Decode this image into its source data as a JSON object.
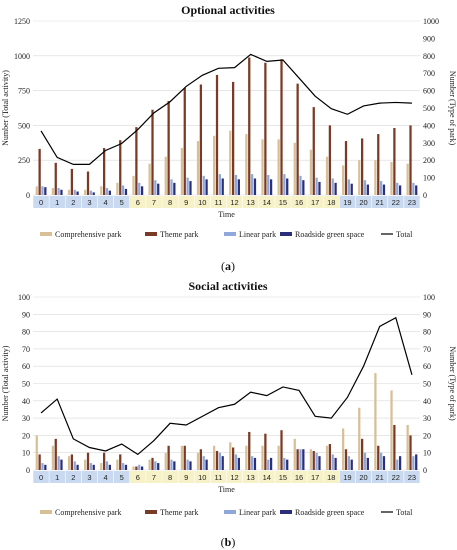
{
  "colors": {
    "comprehensive": "#d8bf96",
    "theme": "#7a3a25",
    "linear": "#8fa8dc",
    "roadside": "#2b2f7a",
    "total": "#000000",
    "hour_blue": "#c9daf0",
    "hour_yellow": "#f6f1c6"
  },
  "chart_data": [
    {
      "type": "bar",
      "panel_label": "(a)",
      "caption_letter": "a",
      "title": "Optional activities",
      "xlabel": "Time",
      "ylabel": "Number (Total activity)",
      "y2label": "Number (Type of park)",
      "ylim": [
        0,
        1250
      ],
      "y2lim": [
        0,
        1000
      ],
      "yticks": [
        "0",
        "250",
        "500",
        "750",
        "1000",
        "1250"
      ],
      "y2ticks": [
        "0",
        "100",
        "200",
        "300",
        "400",
        "500",
        "600",
        "700",
        "800",
        "900",
        "1000"
      ],
      "categories": [
        "0",
        "1",
        "2",
        "3",
        "4",
        "5",
        "6",
        "7",
        "8",
        "9",
        "10",
        "11",
        "12",
        "13",
        "14",
        "15",
        "16",
        "17",
        "18",
        "19",
        "20",
        "21",
        "22",
        "23"
      ],
      "hour_shading": [
        "blue",
        "blue",
        "blue",
        "blue",
        "blue",
        "blue",
        "yellow",
        "yellow",
        "yellow",
        "yellow",
        "yellow",
        "yellow",
        "yellow",
        "yellow",
        "yellow",
        "yellow",
        "yellow",
        "yellow",
        "yellow",
        "blue",
        "blue",
        "blue",
        "blue",
        "blue"
      ],
      "legend_position": "bottom",
      "grid": true,
      "series": [
        {
          "name": "Comprehensive park",
          "key": "comprehensive",
          "axis": "secondary",
          "values": [
            50,
            40,
            30,
            30,
            50,
            70,
            110,
            180,
            220,
            270,
            310,
            340,
            370,
            350,
            320,
            320,
            300,
            260,
            220,
            170,
            200,
            200,
            190,
            180
          ]
        },
        {
          "name": "Theme park",
          "key": "theme",
          "axis": "secondary",
          "values": [
            265,
            185,
            150,
            135,
            270,
            315,
            390,
            490,
            540,
            615,
            635,
            690,
            650,
            790,
            760,
            780,
            640,
            505,
            400,
            310,
            325,
            350,
            385,
            400
          ]
        },
        {
          "name": "Linear park",
          "key": "linear",
          "axis": "secondary",
          "values": [
            50,
            40,
            30,
            25,
            40,
            55,
            70,
            85,
            90,
            100,
            110,
            120,
            115,
            120,
            115,
            120,
            110,
            100,
            95,
            90,
            85,
            80,
            70,
            70
          ]
        },
        {
          "name": "Roadside green space",
          "key": "roadside",
          "axis": "secondary",
          "values": [
            45,
            30,
            20,
            15,
            25,
            35,
            50,
            65,
            70,
            80,
            90,
            95,
            90,
            95,
            90,
            95,
            85,
            75,
            70,
            65,
            60,
            60,
            55,
            55
          ]
        },
        {
          "name": "Total",
          "key": "total",
          "axis": "primary",
          "type": "line",
          "values": [
            460,
            270,
            220,
            220,
            320,
            370,
            470,
            590,
            670,
            780,
            860,
            910,
            915,
            1010,
            960,
            970,
            840,
            710,
            620,
            580,
            640,
            660,
            665,
            660
          ]
        }
      ]
    },
    {
      "type": "bar",
      "panel_label": "(b)",
      "caption_letter": "b",
      "title": "Social activities",
      "xlabel": "Time",
      "ylabel": "Number (Total activity)",
      "y2label": "Number (Type of park)",
      "ylim": [
        0,
        100
      ],
      "y2lim": [
        0,
        100
      ],
      "yticks": [
        "0",
        "10",
        "20",
        "30",
        "40",
        "50",
        "60",
        "70",
        "80",
        "90",
        "100"
      ],
      "y2ticks": [
        "0",
        "10",
        "20",
        "30",
        "40",
        "50",
        "60",
        "70",
        "80",
        "90",
        "100"
      ],
      "categories": [
        "0",
        "1",
        "2",
        "3",
        "4",
        "5",
        "6",
        "7",
        "8",
        "9",
        "10",
        "11",
        "12",
        "13",
        "14",
        "15",
        "16",
        "17",
        "18",
        "19",
        "20",
        "21",
        "22",
        "23"
      ],
      "hour_shading": [
        "blue",
        "blue",
        "blue",
        "blue",
        "blue",
        "blue",
        "yellow",
        "yellow",
        "yellow",
        "yellow",
        "yellow",
        "yellow",
        "yellow",
        "yellow",
        "yellow",
        "yellow",
        "yellow",
        "yellow",
        "yellow",
        "blue",
        "blue",
        "blue",
        "blue",
        "blue"
      ],
      "legend_position": "bottom",
      "grid": true,
      "series": [
        {
          "name": "Comprehensive park",
          "key": "comprehensive",
          "axis": "secondary",
          "values": [
            20,
            14,
            8,
            6,
            4,
            6,
            2,
            6,
            10,
            14,
            10,
            14,
            16,
            14,
            14,
            14,
            18,
            12,
            14,
            24,
            36,
            56,
            46,
            26
          ]
        },
        {
          "name": "Theme park",
          "key": "theme",
          "axis": "secondary",
          "values": [
            9,
            18,
            9,
            10,
            10,
            9,
            2,
            7,
            14,
            14,
            12,
            11,
            13,
            22,
            21,
            23,
            12,
            11,
            15,
            12,
            18,
            14,
            26,
            20
          ]
        },
        {
          "name": "Linear park",
          "key": "linear",
          "axis": "secondary",
          "values": [
            4,
            8,
            5,
            4,
            5,
            4,
            3,
            5,
            6,
            6,
            8,
            10,
            9,
            8,
            6,
            7,
            12,
            10,
            9,
            8,
            10,
            10,
            6,
            8
          ]
        },
        {
          "name": "Roadside green space",
          "key": "roadside",
          "axis": "secondary",
          "values": [
            3,
            6,
            3,
            3,
            3,
            3,
            2,
            4,
            5,
            5,
            6,
            8,
            7,
            7,
            7,
            6,
            12,
            8,
            7,
            6,
            7,
            8,
            8,
            9
          ]
        },
        {
          "name": "Total",
          "key": "total",
          "axis": "primary",
          "type": "line",
          "values": [
            33,
            41,
            18,
            13,
            11,
            15,
            9,
            17,
            27,
            26,
            31,
            36,
            38,
            45,
            43,
            48,
            46,
            31,
            30,
            42,
            60,
            83,
            88,
            55
          ]
        }
      ]
    }
  ]
}
